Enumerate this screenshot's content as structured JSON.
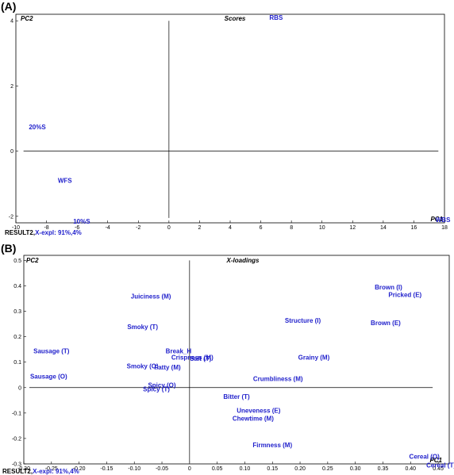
{
  "panel_a": {
    "letter": "(A)"
  },
  "panel_b": {
    "letter": "(B)"
  },
  "chart_data": [
    {
      "type": "scatter",
      "title": "Scores",
      "xlabel": "PC1",
      "ylabel": "PC2",
      "footer": {
        "prefix": "RESULT2,",
        "text": "X-expl: 91%,4%"
      },
      "xlim": [
        -10,
        18
      ],
      "ylim": [
        -2.2,
        4.2
      ],
      "xticks": [
        -10,
        -8,
        -6,
        -4,
        -2,
        0,
        2,
        4,
        6,
        8,
        10,
        12,
        14,
        16,
        18
      ],
      "yticks": [
        -2,
        0,
        2,
        4
      ],
      "grid": false,
      "points": [
        {
          "label": "RBS",
          "x": 7.0,
          "y": 4.1
        },
        {
          "label": "20%S",
          "x": -8.6,
          "y": 0.75
        },
        {
          "label": "WFS",
          "x": -6.8,
          "y": -0.9
        },
        {
          "label": "10%S",
          "x": -5.7,
          "y": -2.15
        },
        {
          "label": "WBS",
          "x": 17.9,
          "y": -2.1
        }
      ]
    },
    {
      "type": "scatter",
      "title": "X-loadings",
      "xlabel": "PC1",
      "ylabel": "PC2",
      "footer": {
        "prefix": "RESULT2,",
        "text": "X-expl: 91%,4%"
      },
      "xlim": [
        -0.3,
        0.47
      ],
      "ylim": [
        -0.3,
        0.52
      ],
      "xticks": [
        -0.3,
        -0.25,
        -0.2,
        -0.15,
        -0.1,
        -0.05,
        0,
        0.05,
        0.1,
        0.15,
        0.2,
        0.25,
        0.3,
        0.35,
        0.4,
        0.45
      ],
      "xticklabels": [
        "-0.30",
        "-0.25",
        "-0.20",
        "-0.15",
        "-0.10",
        "-0.05",
        "0",
        "0.05",
        "0.10",
        "0.15",
        "0.20",
        "0.25",
        "0.30",
        "0.35",
        "0.40",
        "0.45"
      ],
      "yticks": [
        -0.3,
        -0.2,
        -0.1,
        0,
        0.1,
        0.2,
        0.3,
        0.4,
        0.5
      ],
      "yticklabels": [
        "-0.3",
        "-0.2",
        "-0.1",
        "0",
        "0.1",
        "0.2",
        "0.3",
        "0.4",
        "0.5"
      ],
      "grid": false,
      "points": [
        {
          "label": "Juiciness (M)",
          "x": -0.07,
          "y": 0.36
        },
        {
          "label": "Smoky (T)",
          "x": -0.085,
          "y": 0.24
        },
        {
          "label": "Sausage (T)",
          "x": -0.25,
          "y": 0.145
        },
        {
          "label": "Sausage (O)",
          "x": -0.255,
          "y": 0.045
        },
        {
          "label": "Break_H",
          "x": -0.02,
          "y": 0.145
        },
        {
          "label": "Crispness (M)",
          "x": 0.005,
          "y": 0.12
        },
        {
          "label": "Salt (T)",
          "x": 0.02,
          "y": 0.115
        },
        {
          "label": "Smoky (O)",
          "x": -0.085,
          "y": 0.085
        },
        {
          "label": "Fatty (M)",
          "x": -0.04,
          "y": 0.08
        },
        {
          "label": "Spicy (O)",
          "x": -0.05,
          "y": 0.01
        },
        {
          "label": "Spicy (T)",
          "x": -0.06,
          "y": -0.005
        },
        {
          "label": "Bitter (T)",
          "x": 0.085,
          "y": -0.035
        },
        {
          "label": "Crumbliness (M)",
          "x": 0.16,
          "y": 0.035
        },
        {
          "label": "Grainy (M)",
          "x": 0.225,
          "y": 0.12
        },
        {
          "label": "Structure (I)",
          "x": 0.205,
          "y": 0.265
        },
        {
          "label": "Brown (I)",
          "x": 0.36,
          "y": 0.395
        },
        {
          "label": "Pricked (E)",
          "x": 0.39,
          "y": 0.365
        },
        {
          "label": "Brown (E)",
          "x": 0.355,
          "y": 0.255
        },
        {
          "label": "Uneveness (E)",
          "x": 0.125,
          "y": -0.09
        },
        {
          "label": "Chewtime (M)",
          "x": 0.115,
          "y": -0.12
        },
        {
          "label": "Firmness (M)",
          "x": 0.15,
          "y": -0.225
        },
        {
          "label": "Cereal (O)",
          "x": 0.425,
          "y": -0.27
        },
        {
          "label": "Cereal (T)",
          "x": 0.455,
          "y": -0.305
        }
      ]
    }
  ]
}
